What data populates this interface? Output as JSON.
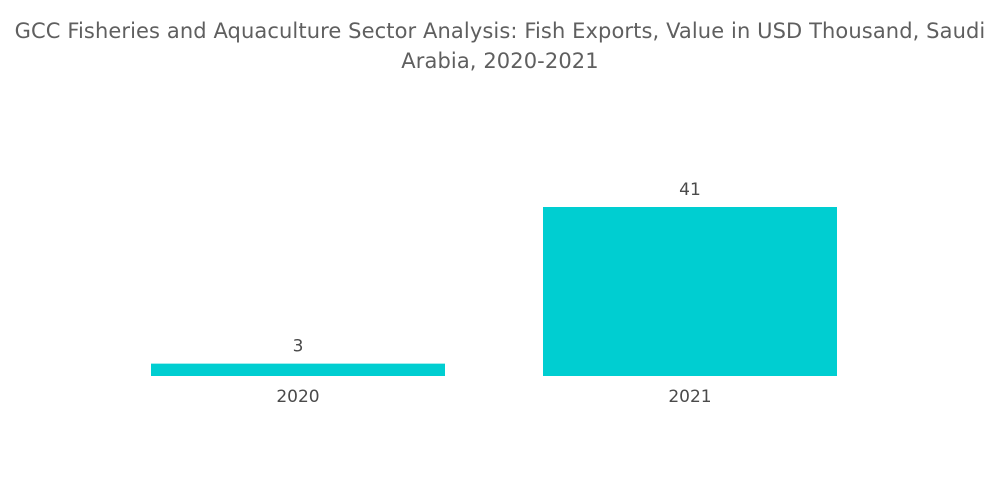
{
  "chart_data": {
    "type": "bar",
    "title": "GCC Fisheries and Aquaculture Sector Analysis: Fish Exports, Value in USD Thousand, Saudi Arabia, 2020-2021",
    "categories": [
      "2020",
      "2021"
    ],
    "values": [
      3,
      41
    ],
    "value_labels": [
      "3",
      "41"
    ],
    "bar_color": "#00CED1",
    "xlabel": "",
    "ylabel": "",
    "ylim": [
      0,
      41
    ],
    "grid": false,
    "legend": "none"
  }
}
